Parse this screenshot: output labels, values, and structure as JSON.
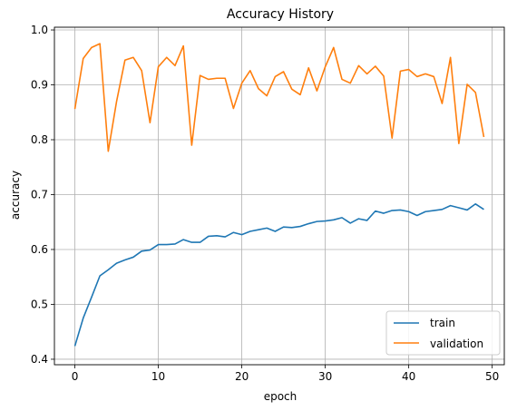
{
  "chart_data": {
    "type": "line",
    "title": "Accuracy History",
    "xlabel": "epoch",
    "ylabel": "accuracy",
    "xlim": [
      -2.45,
      51.45
    ],
    "ylim": [
      0.39,
      1.005
    ],
    "xticks": [
      0,
      10,
      20,
      30,
      40,
      50
    ],
    "yticks": [
      0.4,
      0.5,
      0.6,
      0.7,
      0.8,
      0.9,
      1.0
    ],
    "ytick_labels": [
      "0.4",
      "0.5",
      "0.6",
      "0.7",
      "0.8",
      "0.9",
      "1.0"
    ],
    "grid": true,
    "legend_position": "bottom-right",
    "series": [
      {
        "name": "train",
        "color": "#1f77b4",
        "x": [
          0,
          1,
          2,
          3,
          4,
          5,
          6,
          7,
          8,
          9,
          10,
          11,
          12,
          13,
          14,
          15,
          16,
          17,
          18,
          19,
          20,
          21,
          22,
          23,
          24,
          25,
          26,
          27,
          28,
          29,
          30,
          31,
          32,
          33,
          34,
          35,
          36,
          37,
          38,
          39,
          40,
          41,
          42,
          43,
          44,
          45,
          46,
          47,
          48,
          49
        ],
        "values": [
          0.424,
          0.475,
          0.513,
          0.552,
          0.563,
          0.575,
          0.581,
          0.586,
          0.597,
          0.599,
          0.609,
          0.609,
          0.61,
          0.618,
          0.613,
          0.613,
          0.624,
          0.625,
          0.623,
          0.631,
          0.627,
          0.633,
          0.636,
          0.639,
          0.633,
          0.641,
          0.64,
          0.642,
          0.647,
          0.651,
          0.652,
          0.654,
          0.658,
          0.648,
          0.656,
          0.653,
          0.67,
          0.666,
          0.671,
          0.672,
          0.669,
          0.662,
          0.669,
          0.671,
          0.673,
          0.68,
          0.676,
          0.672,
          0.683,
          0.673
        ]
      },
      {
        "name": "validation",
        "color": "#ff7f0e",
        "x": [
          0,
          1,
          2,
          3,
          4,
          5,
          6,
          7,
          8,
          9,
          10,
          11,
          12,
          13,
          14,
          15,
          16,
          17,
          18,
          19,
          20,
          21,
          22,
          23,
          24,
          25,
          26,
          27,
          28,
          29,
          30,
          31,
          32,
          33,
          34,
          35,
          36,
          37,
          38,
          39,
          40,
          41,
          42,
          43,
          44,
          45,
          46,
          47,
          48,
          49
        ],
        "values": [
          0.856,
          0.948,
          0.968,
          0.975,
          0.779,
          0.87,
          0.945,
          0.95,
          0.926,
          0.831,
          0.933,
          0.95,
          0.935,
          0.971,
          0.79,
          0.917,
          0.91,
          0.912,
          0.912,
          0.857,
          0.903,
          0.926,
          0.893,
          0.88,
          0.915,
          0.924,
          0.892,
          0.882,
          0.931,
          0.889,
          0.933,
          0.968,
          0.91,
          0.903,
          0.935,
          0.92,
          0.934,
          0.916,
          0.803,
          0.925,
          0.928,
          0.915,
          0.92,
          0.915,
          0.866,
          0.95,
          0.793,
          0.901,
          0.886,
          0.805
        ]
      }
    ]
  }
}
